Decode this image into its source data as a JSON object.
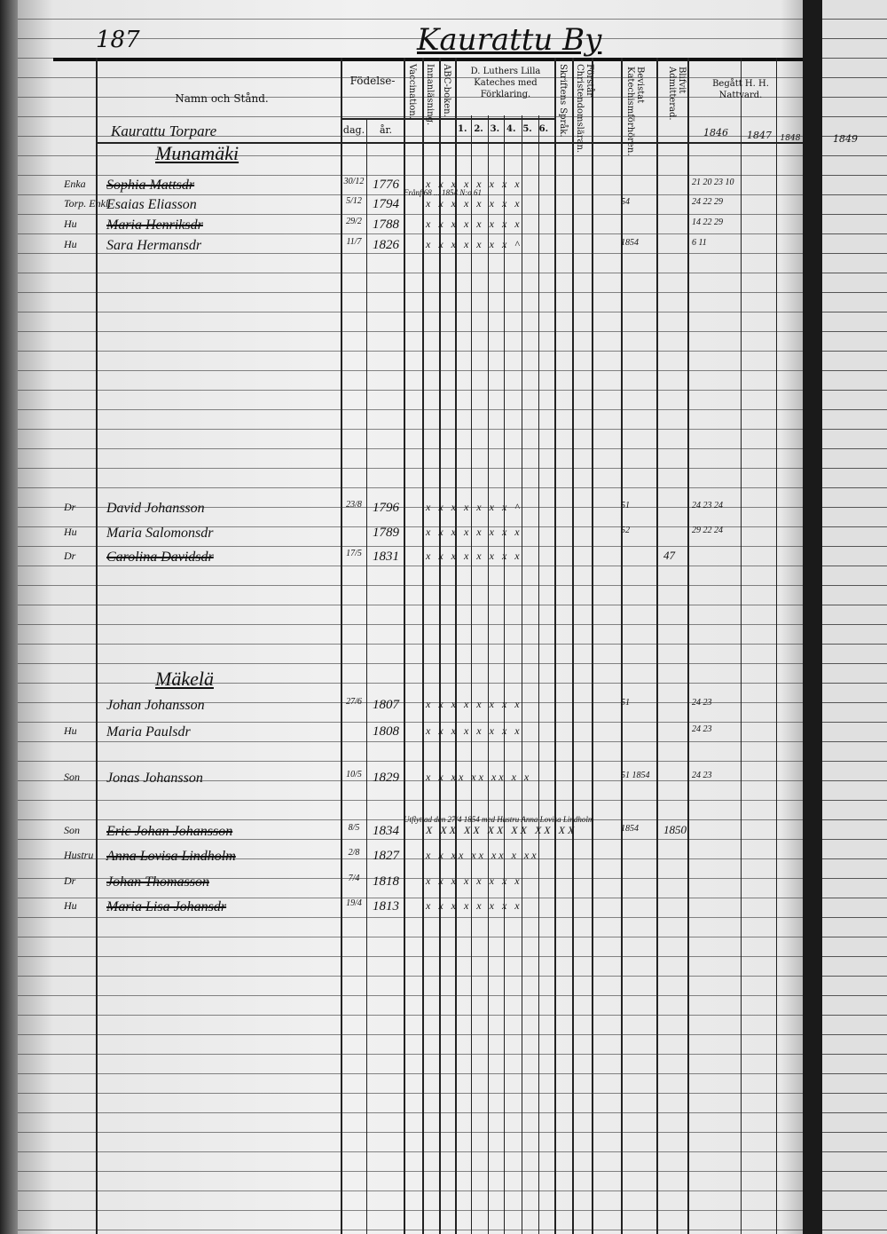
{
  "folio": "187",
  "village": "Kaurattu By",
  "headers": {
    "name": "Namn och Stånd.",
    "birth": "Födelse-",
    "day": "dag.",
    "year": "år.",
    "vaccination": "Vaccination.",
    "reading": "Innanläsning.",
    "abc": "ABC-boken.",
    "catechism": "D. Luthers Lilla Kateches med Förklaring.",
    "catechism_parts": [
      "1.",
      "2.",
      "3.",
      "4.",
      "5.",
      "6."
    ],
    "scripture": "Skriftens Språk.",
    "understands": "Förstår Christendomsläran.",
    "attended": "Bevistat Katechismförhören.",
    "admitted": "Blifvit Admitterad.",
    "communion": "Begått H. H. Nattvard.",
    "years": [
      "1846",
      "1847",
      "1848"
    ],
    "next_page_year": "1849"
  },
  "subtitle": "Kaurattu Torpare",
  "sections": [
    {
      "title": "Munamäki",
      "rows": [
        {
          "role": "Enka",
          "name": "Sophia Mattsdr",
          "struck": true,
          "day": "30/12",
          "year": "1776",
          "marks": "x x x x x x x x",
          "attended": "",
          "admitted": "",
          "communion": "21 20  23 10"
        },
        {
          "role": "Torp. Enkl.",
          "name": "Esaias Eliasson",
          "struck": false,
          "day": "5/12",
          "year": "1794",
          "marks": "x x x x x x x x",
          "note": "Frånf 68 ... 1854 N:o 61",
          "attended": "54",
          "admitted": "",
          "communion": "24 22  29"
        },
        {
          "role": "Hu",
          "name": "Maria Henriksdr",
          "struck": true,
          "day": "29/2",
          "year": "1788",
          "marks": "x x x x x x x x",
          "attended": "",
          "admitted": "",
          "communion": "14 22  29"
        },
        {
          "role": "Hu",
          "name": "Sara Hermansdr",
          "struck": false,
          "day": "11/7",
          "year": "1826",
          "marks": "x x x x x x x ^",
          "attended": "1854",
          "admitted": "",
          "communion": "6 11"
        }
      ]
    },
    {
      "title": "",
      "rows": [
        {
          "role": "Dr",
          "name": "David Johansson",
          "struck": false,
          "day": "23/8",
          "year": "1796",
          "marks": "x x x x x x x ^",
          "attended": "51",
          "admitted": "",
          "communion": "24 23  24"
        },
        {
          "role": "Hu",
          "name": "Maria Salomonsdr",
          "struck": false,
          "day": "",
          "year": "1789",
          "marks": "x x x x x x x x",
          "attended": "52",
          "admitted": "",
          "communion": "29 22  24"
        },
        {
          "role": "Dr",
          "name": "Carolina Davidsdr",
          "struck": true,
          "day": "17/5",
          "year": "1831",
          "marks": "x x x x x x x x",
          "attended": "",
          "admitted": "47",
          "communion": ""
        }
      ]
    },
    {
      "title": "Mäkelä",
      "rows": [
        {
          "role": "",
          "name": "Johan Johansson",
          "struck": false,
          "day": "27/6",
          "year": "1807",
          "marks": "x x x x x x x x",
          "attended": "51",
          "admitted": "",
          "communion": "24  23"
        },
        {
          "role": "Hu",
          "name": "Maria Paulsdr",
          "struck": false,
          "day": "",
          "year": "1808",
          "marks": "x x x x x x x x",
          "attended": "",
          "admitted": "",
          "communion": "24  23"
        },
        {
          "role": "Son",
          "name": "Jonas Johansson",
          "struck": false,
          "day": "10/5",
          "year": "1829",
          "marks": "x x xx xx xx x x",
          "attended": "51 1854",
          "admitted": "",
          "communion": "24  23"
        },
        {
          "role": "Son",
          "name": "Eric Johan Johansson",
          "struck": true,
          "day": "8/5",
          "year": "1834",
          "marks": "X XX XX XX XX XX XX",
          "note": "Utflyttad den 27/4 1854 med Hustru Anna Lovisa Lindholm",
          "attended": "1854",
          "admitted": "1850",
          "communion": ""
        },
        {
          "role": "Hustru",
          "name": "Anna Lovisa Lindholm",
          "struck": true,
          "day": "2/8",
          "year": "1827",
          "marks": "x x xx xx xx x xx",
          "attended": "",
          "admitted": "",
          "communion": ""
        },
        {
          "role": "Dr",
          "name": "Johan Thomasson",
          "struck": true,
          "day": "7/4",
          "year": "1818",
          "marks": "x x x x x x x x",
          "attended": "",
          "admitted": "",
          "communion": ""
        },
        {
          "role": "Hu",
          "name": "Maria Lisa Johansdr",
          "struck": true,
          "day": "19/4",
          "year": "1813",
          "marks": "x x x x x x x x",
          "attended": "",
          "admitted": "",
          "communion": ""
        }
      ]
    }
  ]
}
